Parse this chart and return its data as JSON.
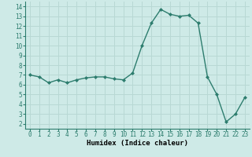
{
  "x": [
    0,
    1,
    2,
    3,
    4,
    5,
    6,
    7,
    8,
    9,
    10,
    11,
    12,
    13,
    14,
    15,
    16,
    17,
    18,
    19,
    20,
    21,
    22,
    23
  ],
  "y": [
    7.0,
    6.8,
    6.2,
    6.5,
    6.2,
    6.5,
    6.7,
    6.8,
    6.8,
    6.6,
    6.5,
    7.2,
    10.0,
    12.3,
    13.7,
    13.2,
    13.0,
    13.1,
    12.3,
    6.8,
    5.0,
    2.2,
    3.0,
    4.7
  ],
  "xlim": [
    -0.5,
    23.5
  ],
  "ylim": [
    1.5,
    14.5
  ],
  "yticks": [
    2,
    3,
    4,
    5,
    6,
    7,
    8,
    9,
    10,
    11,
    12,
    13,
    14
  ],
  "xticks": [
    0,
    1,
    2,
    3,
    4,
    5,
    6,
    7,
    8,
    9,
    10,
    11,
    12,
    13,
    14,
    15,
    16,
    17,
    18,
    19,
    20,
    21,
    22,
    23
  ],
  "xlabel": "Humidex (Indice chaleur)",
  "line_color": "#2d7d6e",
  "marker": "D",
  "marker_size": 2.0,
  "bg_color": "#ceeae7",
  "grid_color": "#b8d8d4",
  "axis_color": "#2d7d6e",
  "xlabel_fontsize": 6.5,
  "tick_fontsize": 5.5,
  "linewidth": 1.0
}
